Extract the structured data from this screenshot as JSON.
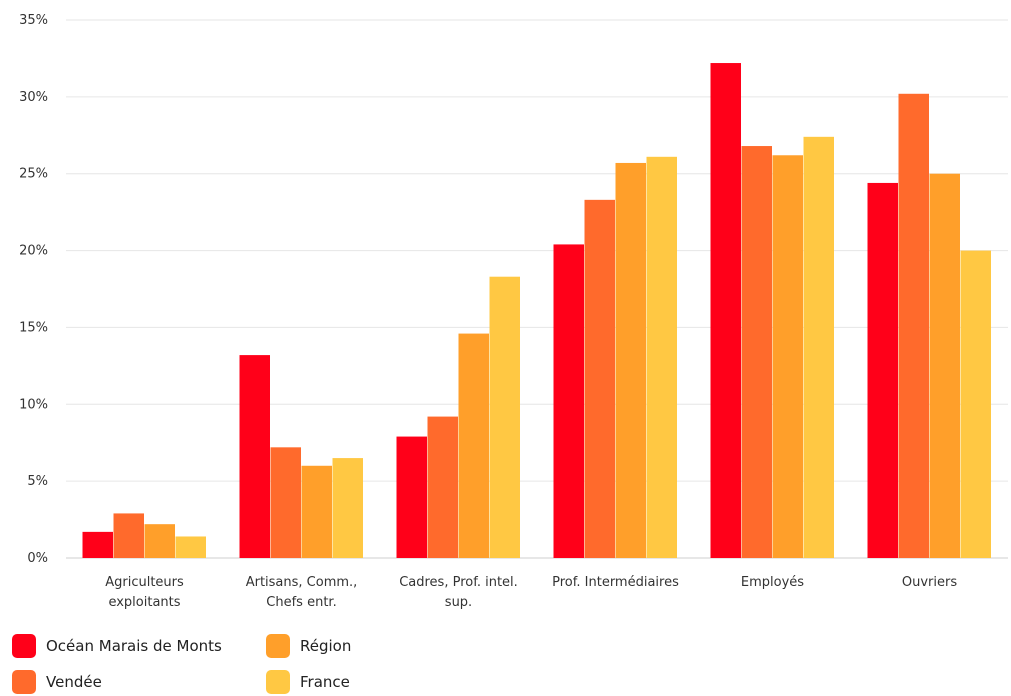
{
  "chart_data": {
    "type": "bar",
    "categories": [
      [
        "Agriculteurs",
        "exploitants"
      ],
      [
        "Artisans, Comm.,",
        "Chefs entr."
      ],
      [
        "Cadres, Prof. intel.",
        "sup."
      ],
      [
        "Prof. Intermédiaires"
      ],
      [
        "Employés"
      ],
      [
        "Ouvriers"
      ]
    ],
    "series": [
      {
        "name": "Océan Marais de Monts",
        "color": "#ff0019",
        "values": [
          1.7,
          13.2,
          7.9,
          20.4,
          32.2,
          24.4
        ]
      },
      {
        "name": "Vendée",
        "color": "#ff6a2c",
        "values": [
          2.9,
          7.2,
          9.2,
          23.3,
          26.8,
          30.2
        ]
      },
      {
        "name": "Région",
        "color": "#ff9f2a",
        "values": [
          2.2,
          6.0,
          14.6,
          25.7,
          26.2,
          25.0
        ]
      },
      {
        "name": "France",
        "color": "#ffc843",
        "values": [
          1.4,
          6.5,
          18.3,
          26.1,
          27.4,
          20.0
        ]
      }
    ],
    "yticks": [
      "0%",
      "5%",
      "10%",
      "15%",
      "20%",
      "25%",
      "30%",
      "35%"
    ],
    "ylim": [
      0,
      35
    ],
    "grid": true,
    "legend_position": "bottom-left"
  }
}
